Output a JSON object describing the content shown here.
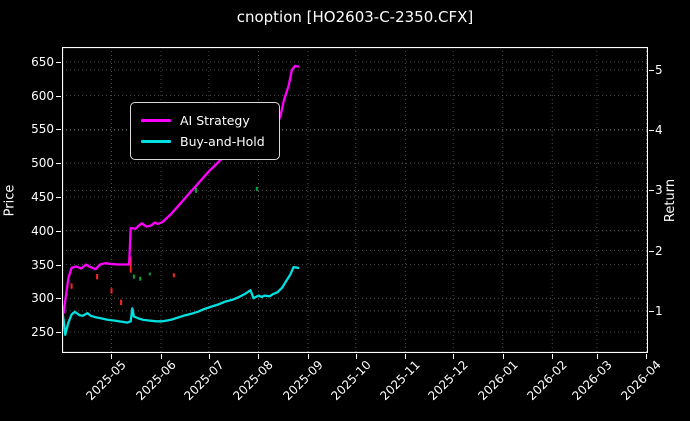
{
  "header": {
    "title": "cnoption [HO2603-C-2350.CFX]"
  },
  "legend": {
    "items": [
      {
        "label": "AI Strategy",
        "color": "#ff00ff"
      },
      {
        "label": "Buy-and-Hold",
        "color": "#00e0e0"
      }
    ]
  },
  "colors": {
    "background": "#000000",
    "text": "#ffffff",
    "grid": "#5f5f5f",
    "spine": "#ffffff",
    "ai_strategy": "#ff00ff",
    "buy_and_hold": "#00e0e0",
    "sell_marker": "#ff2222",
    "buy_marker": "#00a844"
  },
  "chart_data": {
    "type": "line",
    "title": "cnoption [HO2603-C-2350.CFX]",
    "legend_position": "upper left",
    "grid": true,
    "x_axis": {
      "min": "2025-03-31",
      "max": "2026-04-02",
      "tick_labels": [
        "2025-05",
        "2025-06",
        "2025-07",
        "2025-08",
        "2025-09",
        "2025-10",
        "2025-11",
        "2025-12",
        "2026-01",
        "2026-02",
        "2026-03",
        "2026-04"
      ]
    },
    "y_left": {
      "label": "Price",
      "min": 219,
      "max": 672,
      "ticks": [
        250,
        300,
        350,
        400,
        450,
        500,
        550,
        600,
        650
      ]
    },
    "y_right": {
      "label": "Return",
      "min": 0.3,
      "max": 5.38,
      "ticks": [
        1,
        2,
        3,
        4,
        5
      ]
    },
    "series": [
      {
        "name": "AI Strategy",
        "color": "#ff00ff",
        "points": [
          [
            "2025-03-31",
            288
          ],
          [
            "2025-04-01",
            278
          ],
          [
            "2025-04-02",
            296
          ],
          [
            "2025-04-04",
            330
          ],
          [
            "2025-04-06",
            345
          ],
          [
            "2025-04-09",
            347
          ],
          [
            "2025-04-12",
            344
          ],
          [
            "2025-04-15",
            350
          ],
          [
            "2025-04-18",
            346
          ],
          [
            "2025-04-21",
            343
          ],
          [
            "2025-04-24",
            350
          ],
          [
            "2025-04-27",
            352
          ],
          [
            "2025-04-30",
            351
          ],
          [
            "2025-05-05",
            350
          ],
          [
            "2025-05-10",
            350
          ],
          [
            "2025-05-12",
            350
          ],
          [
            "2025-05-13",
            404
          ],
          [
            "2025-05-16",
            403
          ],
          [
            "2025-05-20",
            411
          ],
          [
            "2025-05-23",
            406
          ],
          [
            "2025-05-26",
            408
          ],
          [
            "2025-05-28",
            412
          ],
          [
            "2025-05-30",
            410
          ],
          [
            "2025-06-02",
            413
          ],
          [
            "2025-06-07",
            424
          ],
          [
            "2025-06-13",
            440
          ],
          [
            "2025-06-19",
            456
          ],
          [
            "2025-06-25",
            472
          ],
          [
            "2025-07-01",
            488
          ],
          [
            "2025-07-08",
            504
          ],
          [
            "2025-07-14",
            520
          ],
          [
            "2025-07-18",
            531
          ],
          [
            "2025-07-21",
            533
          ],
          [
            "2025-07-23",
            521
          ],
          [
            "2025-07-25",
            517
          ],
          [
            "2025-07-27",
            540
          ],
          [
            "2025-07-28",
            537
          ],
          [
            "2025-07-31",
            548
          ],
          [
            "2025-08-03",
            556
          ],
          [
            "2025-08-05",
            564
          ],
          [
            "2025-08-07",
            559
          ],
          [
            "2025-08-08",
            544
          ],
          [
            "2025-08-10",
            540
          ],
          [
            "2025-08-12",
            551
          ],
          [
            "2025-08-15",
            572
          ],
          [
            "2025-08-17",
            593
          ],
          [
            "2025-08-20",
            615
          ],
          [
            "2025-08-22",
            638
          ],
          [
            "2025-08-24",
            644
          ],
          [
            "2025-08-26",
            643
          ]
        ]
      },
      {
        "name": "Buy-and-Hold",
        "color": "#00e0e0",
        "points": [
          [
            "2025-03-31",
            283
          ],
          [
            "2025-04-01",
            268
          ],
          [
            "2025-04-02",
            246
          ],
          [
            "2025-04-04",
            264
          ],
          [
            "2025-04-06",
            276
          ],
          [
            "2025-04-08",
            280
          ],
          [
            "2025-04-11",
            275
          ],
          [
            "2025-04-13",
            274
          ],
          [
            "2025-04-16",
            278
          ],
          [
            "2025-04-18",
            274
          ],
          [
            "2025-04-21",
            272
          ],
          [
            "2025-04-25",
            270
          ],
          [
            "2025-04-29",
            268
          ],
          [
            "2025-05-03",
            267
          ],
          [
            "2025-05-08",
            265
          ],
          [
            "2025-05-11",
            264
          ],
          [
            "2025-05-13",
            266
          ],
          [
            "2025-05-14",
            285
          ],
          [
            "2025-05-15",
            273
          ],
          [
            "2025-05-18",
            270
          ],
          [
            "2025-05-21",
            268
          ],
          [
            "2025-05-25",
            267
          ],
          [
            "2025-05-29",
            266
          ],
          [
            "2025-06-02",
            266
          ],
          [
            "2025-06-07",
            268
          ],
          [
            "2025-06-11",
            271
          ],
          [
            "2025-06-15",
            274
          ],
          [
            "2025-06-20",
            277
          ],
          [
            "2025-06-24",
            280
          ],
          [
            "2025-06-28",
            284
          ],
          [
            "2025-07-03",
            288
          ],
          [
            "2025-07-07",
            291
          ],
          [
            "2025-07-11",
            295
          ],
          [
            "2025-07-16",
            298
          ],
          [
            "2025-07-20",
            302
          ],
          [
            "2025-07-24",
            307
          ],
          [
            "2025-07-27",
            312
          ],
          [
            "2025-07-29",
            300
          ],
          [
            "2025-08-01",
            304
          ],
          [
            "2025-08-03",
            302
          ],
          [
            "2025-08-05",
            304
          ],
          [
            "2025-08-08",
            303
          ],
          [
            "2025-08-10",
            306
          ],
          [
            "2025-08-13",
            309
          ],
          [
            "2025-08-16",
            316
          ],
          [
            "2025-08-18",
            324
          ],
          [
            "2025-08-21",
            335
          ],
          [
            "2025-08-23",
            346
          ],
          [
            "2025-08-26",
            345
          ]
        ]
      }
    ],
    "markers": [
      {
        "name": "sell-marks",
        "color": "#ff2222",
        "points": [
          [
            "2025-04-06",
            318,
            4
          ],
          [
            "2025-04-22",
            332,
            4
          ],
          [
            "2025-05-01",
            311,
            4
          ],
          [
            "2025-05-07",
            294,
            4
          ],
          [
            "2025-05-13",
            350,
            12
          ],
          [
            "2025-06-09",
            334,
            3
          ],
          [
            "2025-08-08",
            523,
            3
          ]
        ]
      },
      {
        "name": "buy-marks",
        "color": "#00a844",
        "points": [
          [
            "2025-03-31",
            225,
            4
          ],
          [
            "2025-05-15",
            332,
            3
          ],
          [
            "2025-05-19",
            329,
            3
          ],
          [
            "2025-05-25",
            336,
            2
          ],
          [
            "2025-06-23",
            460,
            4
          ],
          [
            "2025-07-31",
            462,
            3
          ]
        ]
      }
    ]
  }
}
